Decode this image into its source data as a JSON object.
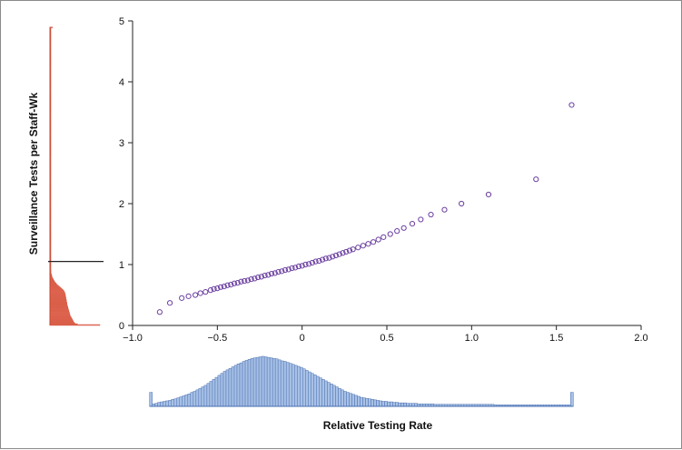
{
  "chart_data": {
    "type": "scatter",
    "title": "",
    "xlabel": "Relative Testing Rate",
    "ylabel": "Surveillance Tests per Staff-Wk",
    "xlim": [
      -1.0,
      2.0
    ],
    "ylim": [
      0,
      5
    ],
    "x_ticks": [
      -1.0,
      -0.5,
      0,
      0.5,
      1.0,
      1.5,
      2.0
    ],
    "x_tick_labels": [
      "−1.0",
      "−0.5",
      "0",
      "0.5",
      "1.0",
      "1.5",
      "2.0"
    ],
    "y_ticks": [
      0,
      1,
      2,
      3,
      4,
      5
    ],
    "y_tick_labels": [
      "0",
      "1",
      "2",
      "3",
      "4",
      "5"
    ],
    "grid": false,
    "legend": "none",
    "colors": {
      "points": "#6b3fa0",
      "y_histogram_fill": "#ee7a66",
      "y_histogram_stroke": "#c8452e",
      "x_histogram_fill": "#a8c1e6",
      "x_histogram_stroke": "#4a6fb0",
      "mean_line": "#222222",
      "axes": "#222222"
    },
    "points": [
      [
        -0.84,
        0.22
      ],
      [
        -0.78,
        0.37
      ],
      [
        -0.71,
        0.45
      ],
      [
        -0.67,
        0.48
      ],
      [
        -0.63,
        0.5
      ],
      [
        -0.6,
        0.53
      ],
      [
        -0.57,
        0.55
      ],
      [
        -0.54,
        0.58
      ],
      [
        -0.52,
        0.6
      ],
      [
        -0.5,
        0.61
      ],
      [
        -0.48,
        0.63
      ],
      [
        -0.46,
        0.64
      ],
      [
        -0.44,
        0.66
      ],
      [
        -0.42,
        0.67
      ],
      [
        -0.4,
        0.69
      ],
      [
        -0.38,
        0.7
      ],
      [
        -0.36,
        0.72
      ],
      [
        -0.34,
        0.73
      ],
      [
        -0.32,
        0.74
      ],
      [
        -0.3,
        0.76
      ],
      [
        -0.28,
        0.77
      ],
      [
        -0.26,
        0.79
      ],
      [
        -0.24,
        0.8
      ],
      [
        -0.22,
        0.82
      ],
      [
        -0.2,
        0.83
      ],
      [
        -0.18,
        0.85
      ],
      [
        -0.16,
        0.86
      ],
      [
        -0.14,
        0.88
      ],
      [
        -0.12,
        0.89
      ],
      [
        -0.1,
        0.91
      ],
      [
        -0.08,
        0.92
      ],
      [
        -0.06,
        0.94
      ],
      [
        -0.04,
        0.95
      ],
      [
        -0.02,
        0.97
      ],
      [
        0.0,
        0.98
      ],
      [
        0.02,
        1.0
      ],
      [
        0.04,
        1.01
      ],
      [
        0.06,
        1.03
      ],
      [
        0.08,
        1.05
      ],
      [
        0.1,
        1.06
      ],
      [
        0.12,
        1.08
      ],
      [
        0.14,
        1.1
      ],
      [
        0.16,
        1.11
      ],
      [
        0.18,
        1.13
      ],
      [
        0.2,
        1.15
      ],
      [
        0.22,
        1.17
      ],
      [
        0.24,
        1.19
      ],
      [
        0.26,
        1.21
      ],
      [
        0.28,
        1.23
      ],
      [
        0.3,
        1.25
      ],
      [
        0.33,
        1.28
      ],
      [
        0.36,
        1.31
      ],
      [
        0.39,
        1.34
      ],
      [
        0.42,
        1.37
      ],
      [
        0.45,
        1.41
      ],
      [
        0.48,
        1.45
      ],
      [
        0.52,
        1.5
      ],
      [
        0.56,
        1.55
      ],
      [
        0.6,
        1.6
      ],
      [
        0.65,
        1.67
      ],
      [
        0.7,
        1.74
      ],
      [
        0.76,
        1.82
      ],
      [
        0.84,
        1.9
      ],
      [
        0.94,
        2.0
      ],
      [
        1.1,
        2.15
      ],
      [
        1.38,
        2.4
      ],
      [
        1.59,
        3.62
      ]
    ],
    "mean_y": 1.05,
    "x_histogram": {
      "bin_start": -0.9,
      "bin_end": 1.6,
      "frequencies": [
        0.28,
        0.05,
        0.06,
        0.08,
        0.09,
        0.1,
        0.11,
        0.12,
        0.14,
        0.15,
        0.17,
        0.19,
        0.21,
        0.23,
        0.25,
        0.28,
        0.3,
        0.33,
        0.36,
        0.39,
        0.42,
        0.46,
        0.5,
        0.54,
        0.58,
        0.62,
        0.66,
        0.7,
        0.73,
        0.76,
        0.79,
        0.82,
        0.85,
        0.87,
        0.9,
        0.92,
        0.94,
        0.96,
        0.97,
        0.98,
        0.99,
        1.0,
        0.99,
        0.98,
        0.97,
        0.96,
        0.95,
        0.93,
        0.91,
        0.9,
        0.88,
        0.86,
        0.84,
        0.82,
        0.8,
        0.78,
        0.75,
        0.72,
        0.69,
        0.66,
        0.63,
        0.6,
        0.57,
        0.54,
        0.51,
        0.48,
        0.45,
        0.42,
        0.39,
        0.36,
        0.33,
        0.3,
        0.28,
        0.26,
        0.24,
        0.22,
        0.2,
        0.18,
        0.17,
        0.16,
        0.15,
        0.14,
        0.13,
        0.12,
        0.11,
        0.1,
        0.1,
        0.09,
        0.09,
        0.08,
        0.08,
        0.07,
        0.07,
        0.07,
        0.06,
        0.06,
        0.06,
        0.06,
        0.05,
        0.05,
        0.05,
        0.05,
        0.05,
        0.05,
        0.04,
        0.04,
        0.04,
        0.04,
        0.04,
        0.04,
        0.04,
        0.04,
        0.04,
        0.04,
        0.04,
        0.04,
        0.04,
        0.04,
        0.04,
        0.04,
        0.04,
        0.04,
        0.04,
        0.04,
        0.04,
        0.04,
        0.03,
        0.03,
        0.03,
        0.03,
        0.03,
        0.03,
        0.03,
        0.03,
        0.03,
        0.03,
        0.03,
        0.03,
        0.03,
        0.03,
        0.03,
        0.03,
        0.03,
        0.03,
        0.03,
        0.03,
        0.03,
        0.03,
        0.03,
        0.03,
        0.03,
        0.03,
        0.03,
        0.03,
        0.28
      ]
    },
    "y_histogram": {
      "bin_start": 0.0,
      "bin_end": 4.9,
      "frequencies": [
        1.0,
        0.55,
        0.5,
        0.48,
        0.47,
        0.46,
        0.45,
        0.44,
        0.43,
        0.42,
        0.41,
        0.4,
        0.4,
        0.39,
        0.39,
        0.38,
        0.38,
        0.37,
        0.37,
        0.36,
        0.36,
        0.35,
        0.35,
        0.34,
        0.34,
        0.34,
        0.33,
        0.33,
        0.33,
        0.32,
        0.32,
        0.32,
        0.31,
        0.31,
        0.31,
        0.3,
        0.3,
        0.29,
        0.28,
        0.27,
        0.25,
        0.23,
        0.21,
        0.19,
        0.17,
        0.15,
        0.13,
        0.12,
        0.1,
        0.09,
        0.08,
        0.07,
        0.06,
        0.05,
        0.04,
        0.04,
        0.03,
        0.03,
        0.02,
        0.02,
        0.02,
        0.02,
        0.01,
        0.01,
        0.01,
        0.01,
        0.01,
        0.01,
        0.01,
        0.01,
        0.01,
        0.01,
        0.01,
        0.01,
        0.01,
        0.01,
        0.01,
        0.01,
        0.01,
        0.01,
        0.01,
        0.01,
        0.01,
        0.01,
        0.01,
        0.01,
        0.01,
        0.01,
        0.01,
        0.01,
        0.01,
        0.01,
        0.01,
        0.01,
        0.01,
        0.01,
        0.01,
        0.01,
        0.01,
        0.01,
        0.01,
        0.01,
        0.01,
        0.01,
        0.01,
        0.01,
        0.01,
        0.01,
        0.01,
        0.01,
        0.01,
        0.01,
        0.01,
        0.01,
        0.01,
        0.01,
        0.01,
        0.01,
        0.01,
        0.01,
        0.01,
        0.01,
        0.01,
        0.01,
        0.01,
        0.01,
        0.01,
        0.01,
        0.01,
        0.01,
        0.01,
        0.01,
        0.01,
        0.01,
        0.01,
        0.01,
        0.01,
        0.01,
        0.01,
        0.01,
        0.01,
        0.01,
        0.01,
        0.01,
        0.01,
        0.01,
        0.01,
        0.01,
        0.01,
        0.01,
        0.01,
        0.01,
        0.01,
        0.01,
        0.01,
        0.01,
        0.01,
        0.01,
        0.01,
        0.01,
        0.01,
        0.01,
        0.01,
        0.01,
        0.01,
        0.01,
        0.01,
        0.01,
        0.01,
        0.01,
        0.01,
        0.01,
        0.01,
        0.01,
        0.01,
        0.01,
        0.01,
        0.01,
        0.01,
        0.01,
        0.01,
        0.01,
        0.01,
        0.01,
        0.01,
        0.01,
        0.01,
        0.01,
        0.01,
        0.01,
        0.01,
        0.01,
        0.01,
        0.01,
        0.01,
        0.01,
        0.01,
        0.01,
        0.01,
        0.01,
        0.01,
        0.01,
        0.01,
        0.01,
        0.01,
        0.01,
        0.01,
        0.01,
        0.01,
        0.01,
        0.01,
        0.01,
        0.01,
        0.01,
        0.01,
        0.01,
        0.01,
        0.01,
        0.01,
        0.01,
        0.01,
        0.01,
        0.01,
        0.01,
        0.01,
        0.01,
        0.01,
        0.01,
        0.01,
        0.01,
        0.01,
        0.01,
        0.01,
        0.01,
        0.01,
        0.01,
        0.01,
        0.01,
        0.01,
        0.01,
        0.01,
        0.01,
        0.01,
        0.01,
        0.01,
        0.01,
        0.01,
        0.01,
        0.01,
        0.01,
        0.01,
        0.01,
        0.01,
        0.01,
        0.01,
        0.01,
        0.01,
        0.01,
        0.01,
        0.01,
        0.01,
        0.01,
        0.01,
        0.01,
        0.01,
        0.01,
        0.01,
        0.01,
        0.01,
        0.01,
        0.01,
        0.01,
        0.01,
        0.01,
        0.01,
        0.01,
        0.01,
        0.01,
        0.01,
        0.01,
        0.01,
        0.01,
        0.01,
        0.01,
        0.01,
        0.01,
        0.01,
        0.01,
        0.01,
        0.01,
        0.01,
        0.01,
        0.01,
        0.01,
        0.01,
        0.01,
        0.01,
        0.01,
        0.01,
        0.01,
        0.01,
        0.01,
        0.01,
        0.01,
        0.01,
        0.01,
        0.01,
        0.01,
        0.01,
        0.01,
        0.01,
        0.01,
        0.01,
        0.01,
        0.01,
        0.01,
        0.01,
        0.01,
        0.01,
        0.01,
        0.01,
        0.01,
        0.01,
        0.01,
        0.01,
        0.01,
        0.01,
        0.01,
        0.01,
        0.01,
        0.01,
        0.01,
        0.01,
        0.01,
        0.05
      ]
    }
  }
}
